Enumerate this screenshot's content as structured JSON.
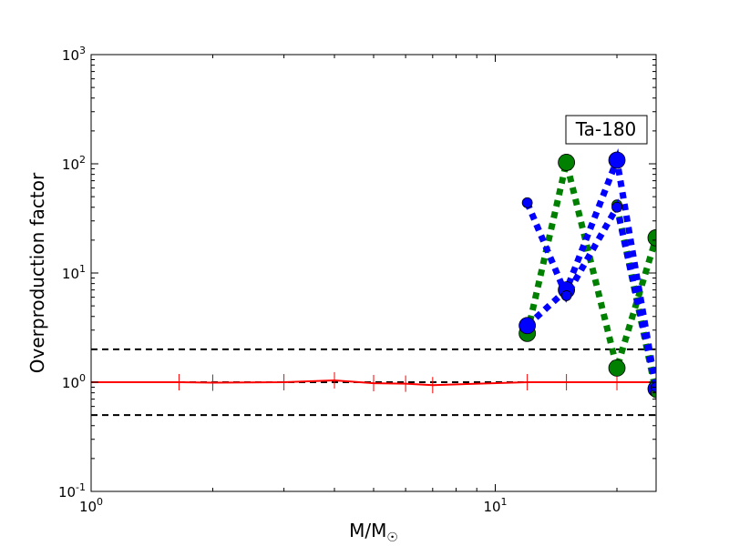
{
  "chart_data": {
    "type": "line",
    "title": "",
    "xlabel": "M/M",
    "xlabel_sub": "☉",
    "ylabel": "Overproduction factor",
    "xscale": "log",
    "yscale": "log",
    "xlim": [
      1,
      25
    ],
    "ylim": [
      0.1,
      1000
    ],
    "x_ticks": [
      {
        "value": 1,
        "base": "10",
        "exp": "0"
      },
      {
        "value": 10,
        "base": "10",
        "exp": "1"
      }
    ],
    "y_ticks": [
      {
        "value": 0.1,
        "base": "10",
        "exp": "-1"
      },
      {
        "value": 1,
        "base": "10",
        "exp": "0"
      },
      {
        "value": 10,
        "base": "10",
        "exp": "1"
      },
      {
        "value": 100,
        "base": "10",
        "exp": "2"
      },
      {
        "value": 1000,
        "base": "10",
        "exp": "3"
      }
    ],
    "annotation": "Ta-180",
    "grid": false,
    "series": [
      {
        "color": "#ff0000",
        "style": "solid",
        "marker": "vline",
        "x": [
          1.0,
          1.65,
          2.0,
          3.0,
          4.0,
          5.0,
          6.0,
          7.0,
          12.0,
          15.0,
          20.0,
          25.0
        ],
        "y": [
          1.0,
          1.0,
          0.99,
          1.0,
          1.04,
          0.98,
          0.97,
          0.94,
          1.0,
          1.0,
          1.0,
          1.0
        ]
      },
      {
        "color": "#008000",
        "style": "dotted",
        "marker": "circle",
        "x": [
          12.0,
          15.0,
          20.0,
          25.0
        ],
        "y": [
          2.8,
          103.0,
          1.35,
          21.0
        ]
      },
      {
        "color": "#0000ff",
        "style": "dotted",
        "marker": "circle",
        "x": [
          12.0,
          15.0,
          20.0,
          25.0
        ],
        "y": [
          3.3,
          7.0,
          108.0,
          0.87
        ]
      },
      {
        "color": "#008000",
        "style": "dotted",
        "marker": "circle-small",
        "x": [
          20.0,
          25.0
        ],
        "y": [
          42.0,
          0.8
        ]
      },
      {
        "color": "#0000ff",
        "style": "dotted",
        "marker": "circle-small",
        "x": [
          12.0,
          15.0,
          20.0,
          25.0
        ],
        "y": [
          44.0,
          6.2,
          40.0,
          0.9
        ]
      }
    ],
    "reference_lines": [
      {
        "y": 2.0,
        "color": "#000000",
        "style": "dashed"
      },
      {
        "y": 1.0,
        "color": "#000000",
        "style": "dashed"
      },
      {
        "y": 0.5,
        "color": "#000000",
        "style": "dashed"
      }
    ]
  }
}
